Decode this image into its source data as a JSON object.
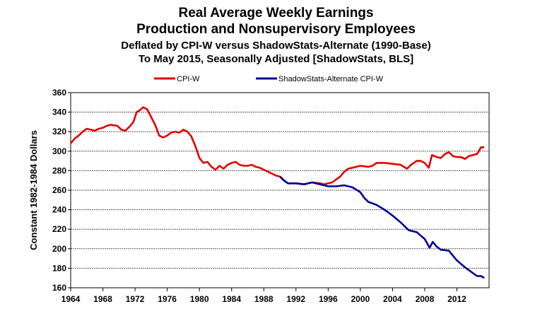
{
  "chart_data": {
    "type": "line",
    "title": "Real Average Weekly Earnings",
    "subtitle1": "Production and Nonsupervisory Employees",
    "subtitle2": "Deflated by CPI-W versus ShadowStats-Alternate (1990-Base)",
    "subtitle3": "To May 2015, Seasonally Adjusted [ShadowStats, BLS]",
    "xlabel": "",
    "ylabel": "Constant 1982-1984 Dollars",
    "xlim": [
      1964,
      2016
    ],
    "ylim": [
      160,
      360
    ],
    "xticks": [
      "1964",
      "1968",
      "1972",
      "1976",
      "1980",
      "1984",
      "1988",
      "1992",
      "1996",
      "2000",
      "2004",
      "2008",
      "2012"
    ],
    "yticks": [
      "160",
      "180",
      "200",
      "220",
      "240",
      "260",
      "280",
      "300",
      "320",
      "340",
      "360"
    ],
    "grid": true,
    "legend_position": "top-center",
    "series": [
      {
        "name": "CPI-W",
        "color": "#e00000",
        "x": [
          1964,
          1964.5,
          1965,
          1965.5,
          1966,
          1967,
          1967.5,
          1968,
          1968.5,
          1969,
          1969.8,
          1970.3,
          1970.8,
          1971.3,
          1971.8,
          1972.2,
          1972.6,
          1973,
          1973.5,
          1974,
          1974.5,
          1975,
          1975.5,
          1976,
          1976.5,
          1977,
          1977.5,
          1978,
          1978.5,
          1979,
          1979.5,
          1980,
          1980.5,
          1981,
          1981.5,
          1982,
          1982.5,
          1983,
          1983.5,
          1984,
          1984.5,
          1985,
          1985.5,
          1986,
          1986.5,
          1987,
          1987.5,
          1988,
          1988.5,
          1989,
          1989.5,
          1990,
          1990.5,
          1991,
          1992,
          1993,
          1994,
          1995,
          1995.5,
          1996,
          1996.5,
          1997,
          1997.5,
          1998,
          1998.5,
          1999,
          1999.5,
          2000,
          2001,
          2001.5,
          2002,
          2003,
          2004,
          2005,
          2005.8,
          2006.3,
          2007,
          2007.5,
          2008,
          2008.5,
          2008.9,
          2009.5,
          2010,
          2010.5,
          2011,
          2011.5,
          2012,
          2012.5,
          2013,
          2013.5,
          2014,
          2014.5,
          2015,
          2015.4
        ],
        "y": [
          308,
          313,
          316,
          320,
          323,
          321,
          323,
          324,
          326,
          327,
          326,
          322,
          321,
          325,
          330,
          340,
          342,
          345,
          343,
          335,
          327,
          316,
          314,
          316,
          319,
          320,
          319,
          322,
          320,
          315,
          305,
          293,
          288,
          289,
          284,
          281,
          285,
          282,
          286,
          288,
          289,
          286,
          285,
          285,
          286,
          284,
          283,
          281,
          279,
          277,
          275,
          274,
          270,
          267,
          267,
          266,
          268,
          267,
          266,
          267,
          268,
          271,
          274,
          279,
          282,
          283,
          284,
          285,
          284,
          285,
          288,
          288,
          287,
          286,
          282,
          286,
          290,
          290,
          288,
          283,
          296,
          294,
          293,
          297,
          299,
          295,
          294,
          294,
          292,
          295,
          296,
          297,
          304,
          304
        ]
      },
      {
        "name": "ShadowStats-Alternate CPI-W",
        "color": "#000099",
        "x": [
          1990,
          1990.5,
          1991,
          1992,
          1993,
          1994,
          1995,
          1996,
          1997,
          1998,
          1999,
          2000,
          2000.5,
          2001,
          2002,
          2003,
          2004,
          2005,
          2006,
          2007,
          2008,
          2008.6,
          2009,
          2009.5,
          2010,
          2011,
          2012,
          2013,
          2014,
          2014.5,
          2015,
          2015.4
        ],
        "y": [
          274,
          270,
          267,
          267,
          266,
          268,
          266,
          264,
          264,
          265,
          263,
          258,
          252,
          248,
          245,
          240,
          234,
          227,
          219,
          217,
          210,
          201,
          207,
          202,
          199,
          198,
          188,
          181,
          175,
          172,
          172,
          170
        ]
      }
    ]
  }
}
